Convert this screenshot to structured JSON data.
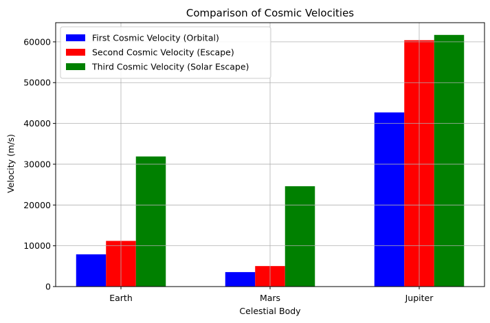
{
  "chart_data": {
    "type": "bar",
    "title": "Comparison of Cosmic Velocities",
    "xlabel": "Celestial Body",
    "ylabel": "Velocity (m/s)",
    "categories": [
      "Earth",
      "Mars",
      "Jupiter"
    ],
    "series": [
      {
        "name": "First Cosmic Velocity (Orbital)",
        "color": "#0000ff",
        "values": [
          7900,
          3550,
          42700
        ]
      },
      {
        "name": "Second Cosmic Velocity (Escape)",
        "color": "#ff0000",
        "values": [
          11200,
          5030,
          60400
        ]
      },
      {
        "name": "Third Cosmic Velocity (Solar Escape)",
        "color": "#008000",
        "values": [
          31900,
          24600,
          61700
        ]
      }
    ],
    "ylim": [
      0,
      64700
    ],
    "yticks": [
      0,
      10000,
      20000,
      30000,
      40000,
      50000,
      60000
    ],
    "grid": true,
    "legend_position": "top-left"
  }
}
